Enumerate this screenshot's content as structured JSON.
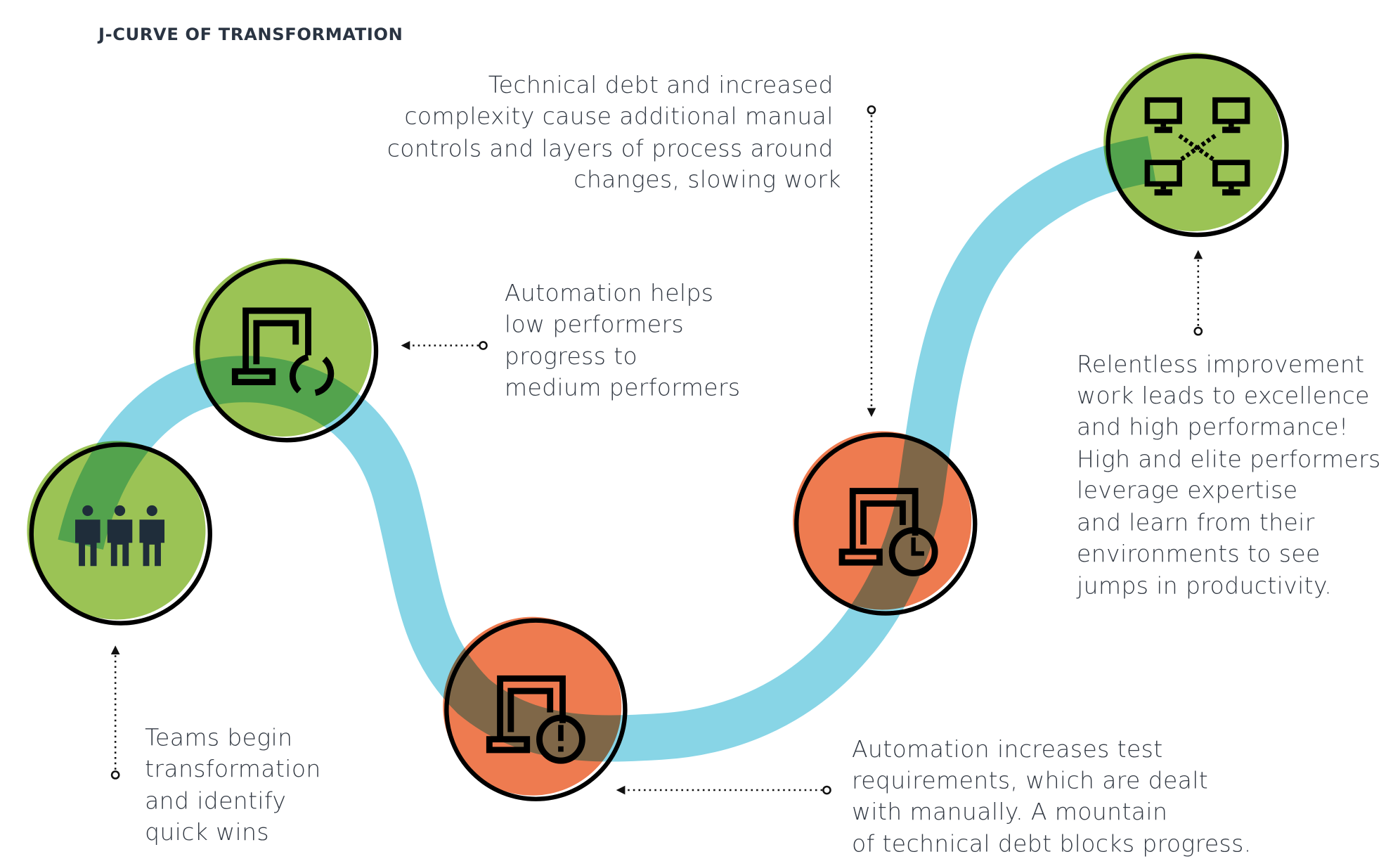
{
  "title": "J-CURVE OF TRANSFORMATION",
  "colors": {
    "green": "#9bc355",
    "orange": "#ee7b50",
    "curve": "#88d5e6",
    "outline": "#000000"
  },
  "stages": [
    {
      "icon": "people-icon",
      "color": "green",
      "lines": [
        "Teams begin",
        "transformation",
        "and identify",
        "quick wins"
      ]
    },
    {
      "icon": "laptop-refresh-icon",
      "color": "green",
      "lines": [
        "Automation helps",
        "low performers",
        "progress to",
        "medium performers"
      ]
    },
    {
      "icon": "laptop-alert-icon",
      "color": "orange",
      "lines": [
        "Automation increases test",
        "requirements, which are dealt",
        "with manually. A mountain",
        "of technical debt blocks progress."
      ]
    },
    {
      "icon": "laptop-clock-icon",
      "color": "orange",
      "lines": [
        "Technical debt and increased",
        "complexity cause additional manual",
        "controls and layers of process around",
        "changes, slowing work"
      ]
    },
    {
      "icon": "network-computers-icon",
      "color": "green",
      "lines": [
        "Relentless improvement",
        "work leads to excellence",
        "and high performance!",
        "High and elite performers",
        "leverage expertise",
        "and learn from their",
        "environments to see",
        "jumps in productivity."
      ]
    }
  ]
}
